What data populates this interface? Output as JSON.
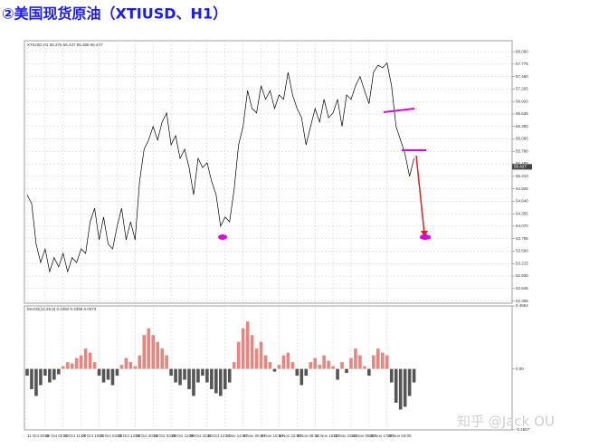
{
  "watermark": "知乎 @Jack OU",
  "chart_data": [
    {
      "type": "line",
      "title": "②美国现货原油（XTIUSD、H1）",
      "legend_text": "XTIUSD,H1 55.376 55.437 55.388 55.427",
      "color": "#000000",
      "values": [
        54.79,
        54.59,
        53.66,
        53.24,
        53.55,
        53.03,
        53.35,
        53.14,
        53.45,
        53.03,
        53.35,
        53.24,
        53.55,
        53.45,
        54.17,
        54.48,
        53.76,
        54.28,
        53.66,
        53.55,
        54.07,
        54.48,
        53.76,
        54.17,
        53.76,
        55.1,
        55.83,
        56.04,
        56.35,
        56.04,
        56.45,
        56.66,
        55.93,
        56.14,
        55.62,
        55.83,
        55.41,
        54.79,
        55.62,
        55.41,
        55.52,
        55.1,
        54.79,
        54.07,
        54.28,
        54.17,
        54.9,
        55.93,
        56.35,
        57.17,
        56.76,
        56.66,
        57.28,
        56.97,
        57.17,
        56.76,
        57.07,
        56.97,
        57.59,
        57.07,
        56.76,
        56.55,
        55.93,
        56.35,
        56.76,
        56.45,
        56.97,
        56.55,
        56.66,
        56.97,
        56.35,
        57.07,
        56.97,
        57.28,
        57.49,
        57.17,
        56.87,
        57.59,
        57.75,
        57.69,
        57.8,
        57.28,
        56.35,
        56.04,
        55.72,
        55.21,
        55.62
      ],
      "last_price": 55.427,
      "xlim": [
        0,
        107
      ],
      "ylim": [
        52.31,
        58.31
      ],
      "yticks": [
        52.355,
        52.645,
        {
          "value": 52.93,
          "label": "52.930"
        },
        53.215,
        {
          "value": 53.5,
          "label": "53.500"
        },
        53.785,
        {
          "value": 54.07,
          "label": "54.070"
        },
        54.355,
        {
          "value": 54.64,
          "label": "54.640"
        },
        54.925,
        {
          "value": 55.21,
          "label": "55.210"
        },
        55.495,
        {
          "value": 55.78,
          "label": "55.780"
        },
        56.065,
        {
          "value": 56.35,
          "label": "56.350"
        },
        56.635,
        {
          "value": 56.92,
          "label": "56.920"
        },
        57.205,
        {
          "value": 57.49,
          "label": "57.490"
        },
        57.775,
        {
          "value": 58.06,
          "label": "58.060"
        }
      ],
      "grid": true
    },
    {
      "type": "bar",
      "legend_text": "MACD(12,26,9) 0.4382 0.4358 0.0073",
      "colors": {
        "positive": "#e8857e",
        "negative": "#555555"
      },
      "values": [
        -0.05,
        -0.15,
        -0.2,
        -0.12,
        -0.05,
        -0.1,
        -0.08,
        -0.04,
        0.02,
        0.05,
        0.04,
        0.08,
        0.1,
        0.15,
        0.12,
        0.05,
        -0.05,
        -0.1,
        -0.08,
        -0.12,
        -0.05,
        0.03,
        0.08,
        0.05,
        0.02,
        0.1,
        0.25,
        0.3,
        0.25,
        0.2,
        0.15,
        0.1,
        -0.05,
        -0.1,
        -0.12,
        -0.08,
        -0.15,
        -0.2,
        -0.1,
        -0.05,
        -0.1,
        -0.15,
        -0.18,
        -0.2,
        -0.15,
        -0.1,
        0.05,
        0.2,
        0.3,
        0.35,
        0.25,
        0.15,
        0.2,
        0.1,
        0.05,
        -0.02,
        0.03,
        0.1,
        0.12,
        0.05,
        -0.05,
        -0.12,
        -0.05,
        0.05,
        0.08,
        0.03,
        0.1,
        0.06,
        0.02,
        -0.08,
        0.05,
        -0.03,
        0.08,
        0.15,
        0.1,
        0.02,
        -0.05,
        0.1,
        0.15,
        0.12,
        0.1,
        -0.1,
        -0.25,
        -0.3,
        -0.28,
        -0.2,
        -0.1
      ],
      "xlim": [
        0,
        107
      ],
      "ylim": [
        -0.4507,
        0.4654
      ],
      "yticks": [
        0.4654,
        {
          "value": 0,
          "label": "0.00"
        },
        -0.4507
      ],
      "xticks": [
        {
          "value": 0,
          "label": "11 Oct 2019"
        },
        {
          "value": 4,
          "label": "15 Oct 02:00"
        },
        {
          "value": 8,
          "label": "16 Oct 11:00"
        },
        {
          "value": 12,
          "label": "17 Oct 19:00"
        },
        {
          "value": 16,
          "label": "21 Oct 03:00"
        },
        {
          "value": 20,
          "label": "22 Oct 13:00"
        },
        {
          "value": 24,
          "label": "23 Oct 20:00"
        },
        {
          "value": 28,
          "label": "24 Oct 03:00"
        },
        {
          "value": 32,
          "label": "25 Oct 12:00"
        },
        {
          "value": 36,
          "label": "28 Oct 20:00"
        },
        {
          "value": 40,
          "label": "31 Oct 12:00"
        },
        {
          "value": 44,
          "label": "1 Nov 14:00"
        },
        {
          "value": 48,
          "label": "4 Nov 06:00"
        },
        {
          "value": 52,
          "label": "5 Nov 15:00"
        },
        {
          "value": 56,
          "label": "6 Nov 23:00"
        },
        {
          "value": 60,
          "label": "8 Nov 08:00"
        },
        {
          "value": 64,
          "label": "11 Nov 16:00"
        },
        {
          "value": 68,
          "label": "12 Nov 23:01"
        },
        {
          "value": 72,
          "label": "14 Nov 08:00"
        },
        {
          "value": 76,
          "label": "15 Nov 17:00"
        },
        {
          "value": 80,
          "label": "19 Nov 03:00"
        }
      ]
    }
  ]
}
